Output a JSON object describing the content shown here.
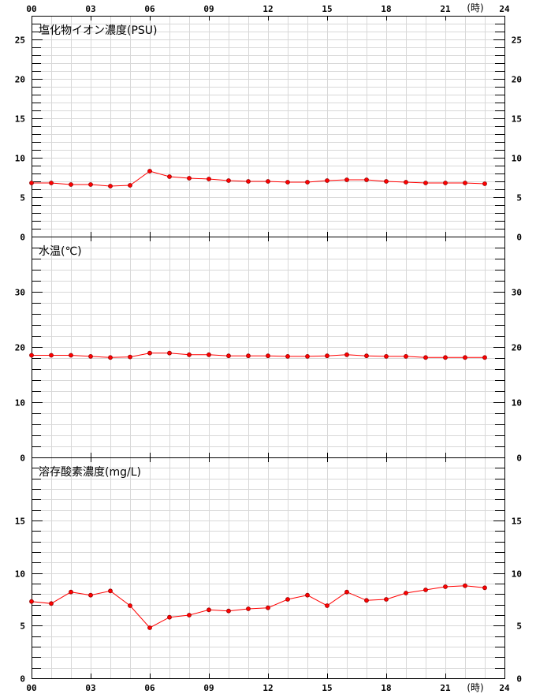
{
  "x_axis": {
    "tick_labels": [
      "00",
      "03",
      "06",
      "09",
      "12",
      "15",
      "18",
      "21",
      "24"
    ],
    "tick_hours": [
      0,
      3,
      6,
      9,
      12,
      15,
      18,
      21,
      24
    ],
    "unit_label": "(時)",
    "range": [
      0,
      24
    ]
  },
  "colors": {
    "series": "#ff0000",
    "marker_fill": "#ff0000",
    "marker_stroke": "#990000",
    "grid": "#d8d8d8",
    "axis": "#000000"
  },
  "chart_data": [
    {
      "type": "line",
      "title": "塩化物イオン濃度(PSU)",
      "ylim": [
        0,
        28
      ],
      "y_tick_labels": [
        "0",
        "5",
        "10",
        "15",
        "20",
        "25"
      ],
      "y_tick_values": [
        0,
        5,
        10,
        15,
        20,
        25
      ],
      "grid": true,
      "x": [
        0,
        1,
        2,
        3,
        4,
        5,
        6,
        7,
        8,
        9,
        10,
        11,
        12,
        13,
        14,
        15,
        16,
        17,
        18,
        19,
        20,
        21,
        22,
        23
      ],
      "values": [
        6.8,
        6.8,
        6.6,
        6.6,
        6.4,
        6.5,
        8.3,
        7.6,
        7.4,
        7.3,
        7.1,
        7.0,
        7.0,
        6.9,
        6.9,
        7.1,
        7.2,
        7.2,
        7.0,
        6.9,
        6.8,
        6.8,
        6.8,
        6.7
      ]
    },
    {
      "type": "line",
      "title": "水温(℃)",
      "ylim": [
        0,
        40
      ],
      "y_tick_labels": [
        "0",
        "10",
        "20",
        "30"
      ],
      "y_tick_values": [
        0,
        10,
        20,
        30
      ],
      "grid": true,
      "x": [
        0,
        1,
        2,
        3,
        4,
        5,
        6,
        7,
        8,
        9,
        10,
        11,
        12,
        13,
        14,
        15,
        16,
        17,
        18,
        19,
        20,
        21,
        22,
        23
      ],
      "values": [
        18.5,
        18.5,
        18.5,
        18.3,
        18.1,
        18.2,
        18.9,
        18.9,
        18.6,
        18.6,
        18.4,
        18.4,
        18.4,
        18.3,
        18.3,
        18.4,
        18.6,
        18.4,
        18.3,
        18.3,
        18.1,
        18.1,
        18.1,
        18.1
      ]
    },
    {
      "type": "line",
      "title": "溶存酸素濃度(mg/L)",
      "ylim": [
        0,
        21
      ],
      "y_tick_labels": [
        "0",
        "5",
        "10",
        "15"
      ],
      "y_tick_values": [
        0,
        5,
        10,
        15
      ],
      "grid": true,
      "x": [
        0,
        1,
        2,
        3,
        4,
        5,
        6,
        7,
        8,
        9,
        10,
        11,
        12,
        13,
        14,
        15,
        16,
        17,
        18,
        19,
        20,
        21,
        22,
        23
      ],
      "values": [
        7.3,
        7.1,
        8.2,
        7.9,
        8.3,
        6.9,
        4.8,
        5.8,
        6.0,
        6.5,
        6.4,
        6.6,
        6.7,
        7.5,
        7.9,
        6.9,
        8.2,
        7.4,
        7.5,
        8.1,
        8.4,
        8.7,
        8.8,
        8.6
      ]
    }
  ]
}
